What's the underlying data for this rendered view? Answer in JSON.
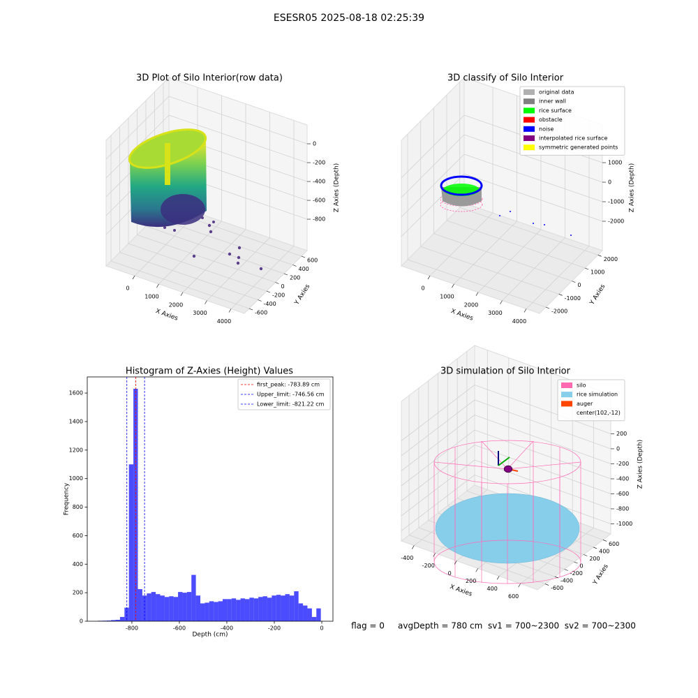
{
  "title": "ESESR05 2025-08-18 02:25:39",
  "footer": "flag = 0     avgDepth = 780 cm  sv1 = 700~2300  sv2 = 700~2300",
  "chart_data": [
    {
      "type": "scatter3d",
      "title": "3D Plot of Silo Interior(row data)",
      "xlabel": "X Axies",
      "ylabel": "Y Axies",
      "zlabel": "Z Axies (Depth)",
      "xlim": [
        -1188,
        4551
      ],
      "ylim": [
        -712,
        728
      ],
      "zlim": [
        -1133,
        200
      ],
      "xticks": [
        0,
        1000,
        2000,
        3000,
        4000
      ],
      "yticks": [
        -600,
        -400,
        -200,
        0,
        200,
        400,
        600
      ],
      "zticks": [
        -800,
        -600,
        -400,
        -200,
        0
      ]
    },
    {
      "type": "scatter3d",
      "title": "3D classify of Silo Interior",
      "xlabel": "X Axies",
      "ylabel": "Y Axies",
      "zlabel": "Z Axies (Depth)",
      "xlim": [
        -1188,
        4551
      ],
      "ylim": [
        -2482,
        2337
      ],
      "zlim": [
        -3500,
        2929
      ],
      "xticks": [
        0,
        1000,
        2000,
        3000,
        4000
      ],
      "yticks": [
        -2000,
        -1000,
        0,
        1000,
        2000
      ],
      "zticks": [
        -2000,
        -1000,
        0,
        1000
      ],
      "legend_loc": "upper right",
      "series": [
        {
          "name": "original data",
          "color": "#b0b0b0"
        },
        {
          "name": "inner wall",
          "color": "#808080"
        },
        {
          "name": "rice surface",
          "color": "#00ff00"
        },
        {
          "name": "obstacle",
          "color": "#ff0000"
        },
        {
          "name": "noise",
          "color": "#0000ff"
        },
        {
          "name": "interpolated rice surface",
          "color": "#800080"
        },
        {
          "name": "symmetric generated points",
          "color": "#ffff00"
        }
      ]
    },
    {
      "type": "histogram",
      "title": "Histogram of Z-Axies (Height) Values",
      "xlabel": "Depth (cm)",
      "ylabel": "Frequency",
      "color": "#0000ff",
      "alpha": 0.7,
      "bins": [
        -944,
        -925.2,
        -906.4,
        -887.6,
        -868.8,
        -850,
        -831.2,
        -812.4,
        -793.6,
        -774.8,
        -756,
        -737.2,
        -718.4,
        -699.6,
        -680.8,
        -662,
        -643.2,
        -624.4,
        -605.6,
        -586.8,
        -568,
        -549.2,
        -530.4,
        -511.6,
        -492.8,
        -474,
        -455.2,
        -436.4,
        -417.6,
        -398.8,
        -380,
        -361.2,
        -342.4,
        -323.6,
        -304.8,
        -286,
        -267.2,
        -248.4,
        -229.6,
        -210.8,
        -192,
        -173.2,
        -154.4,
        -135.6,
        -116.8,
        -98,
        -79.2,
        -60.4,
        -41.6,
        -22.8,
        -4
      ],
      "counts": [
        3,
        4,
        5,
        8,
        10,
        30,
        95,
        1100,
        1630,
        225,
        180,
        195,
        205,
        190,
        180,
        170,
        175,
        170,
        205,
        200,
        205,
        325,
        180,
        125,
        130,
        140,
        135,
        140,
        155,
        155,
        160,
        150,
        160,
        155,
        165,
        160,
        170,
        175,
        165,
        180,
        185,
        180,
        190,
        180,
        210,
        125,
        110,
        90,
        30,
        90
      ],
      "xlim": [
        -988,
        47
      ],
      "ylim": [
        0,
        1713
      ],
      "xticks": [
        -800,
        -600,
        -400,
        -200,
        0
      ],
      "yticks": [
        0,
        200,
        400,
        600,
        800,
        1000,
        1200,
        1400,
        1600
      ],
      "legend_loc": "upper right",
      "vlines": [
        {
          "label": "first_peak: -783.89 cm",
          "value": -783.89,
          "color": "#ff0000"
        },
        {
          "label": "Upper_limit: -746.56 cm",
          "value": -746.56,
          "color": "#0000ff"
        },
        {
          "label": "Lower_limit: -821.22 cm",
          "value": -821.22,
          "color": "#0000ff"
        }
      ]
    },
    {
      "type": "scatter3d",
      "title": "3D simulation of Silo Interior",
      "xlabel": "X Axies",
      "ylabel": "Y Axies",
      "zlabel": "Z Axies (Depth)",
      "xlim": [
        -520,
        760
      ],
      "ylim": [
        -760,
        760
      ],
      "zlim": [
        -1135,
        725
      ],
      "xticks": [
        -400,
        -200,
        0,
        200,
        400,
        600
      ],
      "yticks": [
        -600,
        -400,
        -200,
        0,
        200,
        400,
        600
      ],
      "zticks": [
        -1000,
        -800,
        -600,
        -400,
        -200,
        0,
        200
      ],
      "legend_loc": "upper right",
      "series": [
        {
          "name": "silo",
          "color": "#ff69b4"
        },
        {
          "name": "rice simulation",
          "color": "#87ceeb"
        },
        {
          "name": "auger",
          "color": "#ff4500"
        },
        {
          "name": "center(102,-12)"
        }
      ]
    }
  ]
}
